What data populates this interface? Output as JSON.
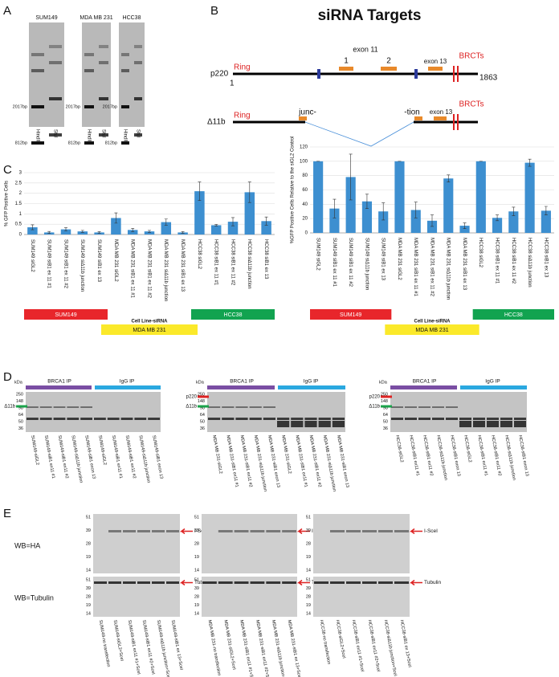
{
  "panel_labels": [
    "A",
    "B",
    "C",
    "D",
    "E"
  ],
  "panel_a": {
    "gels": [
      {
        "title": "SUM149",
        "markers": [
          "2017bp",
          "812bp"
        ],
        "lanes": [
          "HindIII",
          "StuI"
        ]
      },
      {
        "title": "MDA MB 231",
        "markers": [
          "2017bp",
          "812bp"
        ],
        "lanes": [
          "HindIII",
          "StuI"
        ]
      },
      {
        "title": "HCC38",
        "markers": [
          "2017bp",
          "812bp"
        ],
        "lanes": [
          "HindIII",
          "StuI"
        ]
      }
    ]
  },
  "panel_b": {
    "title": "siRNA Targets",
    "p220": {
      "label": "p220",
      "ring": "Ring",
      "exon11": "exon 11",
      "target1": "1",
      "target2": "2",
      "exon13": "exon 13",
      "brct": "BRCTs",
      "start": "1",
      "end": "1863"
    },
    "d11b": {
      "label": "Δ11b",
      "ring": "Ring",
      "junc": "junc-",
      "tion": "-tion",
      "exon13": "exon 13",
      "brct": "BRCTs"
    }
  },
  "panel_c": {
    "charts": [
      {
        "type": "bar",
        "ylabel": "% GFP Positive Cells",
        "color": "#3d8fd0",
        "grid": true,
        "categories": [
          "SUM149 siGL2",
          "SUM149 siB1 ex 11 #1",
          "SUM149 siB1 ex 11 #2",
          "SUM149 siΔ11b junction",
          "SUM149 siB1 ex 13",
          "MDA MB 231 siGL2",
          "MDA MB 231 siB1 ex 11 #1",
          "MDA MB 231 siB1 ex 11 #2",
          "MDA MB 231 siΔ11b junction",
          "MDA MB 231 siB1 ex 13",
          "HCC38 siGL2",
          "HCC38 siB1 ex 11 #1",
          "HCC38 siB1 ex 11 #2",
          "HCC38 siΔ11b junction",
          "HCC38 siB1 ex 13"
        ],
        "values": [
          0.35,
          0.1,
          0.25,
          0.15,
          0.1,
          0.8,
          0.22,
          0.15,
          0.6,
          0.1,
          2.1,
          0.45,
          0.62,
          2.05,
          0.65
        ],
        "errors": [
          0.12,
          0.05,
          0.08,
          0.05,
          0.04,
          0.25,
          0.08,
          0.05,
          0.15,
          0.04,
          0.45,
          0.04,
          0.2,
          0.5,
          0.2
        ],
        "ylim": [
          0,
          3
        ],
        "yticks": [
          0,
          0.5,
          1,
          1.5,
          2,
          2.5,
          3
        ],
        "xlabel": "Cell Line-siRNA",
        "groups": [
          {
            "name": "SUM149",
            "color": "#e8262b"
          },
          {
            "name": "MDA MB 231",
            "color": "#fbe92a"
          },
          {
            "name": "HCC38",
            "color": "#12a350"
          }
        ]
      },
      {
        "type": "bar",
        "ylabel": "%GFP Positive Cells Relative to the siGL2 Control",
        "color": "#3d8fd0",
        "grid": true,
        "categories": [
          "SUM149 siGL2",
          "SUM149 siB1 ex 11 #1",
          "SUM149 siB1 ex 11 #2",
          "SUM149 siΔ11b junction",
          "SUM149 siB1 ex 13",
          "MDA MB 231 siGL2",
          "MDA MB 231 siB1 ex 11 #1",
          "MDA MB 231 siB1 ex 11 #2",
          "MDA MB 231 siΔ11b junction",
          "MDA MB 231 siB1 ex 13",
          "HCC38 siGL2",
          "HCC38 siB1 ex 11 #1",
          "HCC38 siB1 ex 11 #2",
          "HCC38 siΔ11b junction",
          "HCC38 siB1 ex 13"
        ],
        "values": [
          100,
          34,
          78,
          44,
          30,
          100,
          32,
          17,
          76,
          10,
          100,
          21,
          30,
          98,
          31
        ],
        "errors": [
          0,
          13,
          32,
          10,
          12,
          0,
          11,
          8,
          5,
          4,
          0,
          4,
          6,
          5,
          6
        ],
        "ylim": [
          0,
          120
        ],
        "yticks": [
          0,
          20,
          40,
          60,
          80,
          100,
          120
        ],
        "xlabel": "Cell Line-siRNA",
        "groups": [
          {
            "name": "SUM149",
            "color": "#e8262b"
          },
          {
            "name": "MDA MB 231",
            "color": "#fbe92a"
          },
          {
            "name": "HCC38",
            "color": "#12a350"
          }
        ]
      }
    ]
  },
  "panel_d": {
    "blots": [
      {
        "unit": "kDa",
        "markers": [
          "250",
          "148",
          "98",
          "64",
          "50",
          "36"
        ],
        "ip_labels": [
          "BRCA1 IP",
          "IgG IP"
        ],
        "bands": [
          "Δ11b"
        ],
        "lanes": [
          "SUM149-siGL2",
          "SUM149-siB1 ex11 #1",
          "SUM149-siB1 ex11 #2",
          "SUM149-siΔ11b junction",
          "SUM149-siB1 exon 13",
          "SUM149-siGL2",
          "SUM149-siB1 ex11 #1",
          "SUM149-siB1 ex11 #2",
          "SUM149-siΔ11b junction",
          "SUM149-siB1 exon 13"
        ]
      },
      {
        "unit": "kDa",
        "markers": [
          "250",
          "148",
          "98",
          "64",
          "50",
          "36"
        ],
        "ip_labels": [
          "BRCA1 IP",
          "IgG IP"
        ],
        "bands": [
          "p220",
          "Δ11b"
        ],
        "lanes": [
          "MDA MB 231-siGL2",
          "MDA MB 231-siB1 ex11 #1",
          "MDA MB 231-siB1 ex11 #2",
          "MDA MB 231-siΔ11b junction",
          "MDA MB 231-siB1 exon 13",
          "MDA MB 231-siGL2",
          "MDA MB 231-siB1 ex11 #1",
          "MDA MB 231-siB1 ex11 #2",
          "MDA MB 231-siΔ11b junction",
          "MDA MB 231-siB1 exon 13"
        ]
      },
      {
        "unit": "kDa",
        "markers": [
          "250",
          "148",
          "98",
          "64",
          "50",
          "36"
        ],
        "ip_labels": [
          "BRCA1 IP",
          "IgG IP"
        ],
        "bands": [
          "p220",
          "Δ11b"
        ],
        "lanes": [
          "HCC38-siGL2",
          "HCC38-siB1 ex11 #1",
          "HCC38-siB1 ex11 #2",
          "HCC38-siΔ11b junction",
          "HCC38-siB1 exon 13",
          "HCC38-siGL2",
          "HCC38-siB1 ex11 #1",
          "HCC38-siB1 ex11 #2",
          "HCC38-siΔ11b junction",
          "HCC38-siB1 exon 13"
        ]
      }
    ]
  },
  "panel_e": {
    "rows": [
      "WB=HA",
      "WB=Tubulin"
    ],
    "blots": [
      {
        "top_markers": [
          "51",
          "39",
          "28",
          "19",
          "14"
        ],
        "bottom_markers": [
          "51",
          "39",
          "28",
          "19",
          "14"
        ],
        "top_band": "I-SceI",
        "bottom_band": "Tubulin",
        "lanes": [
          "SUM149-no transfection",
          "SUM149-siGL2+SceI",
          "SUM149-siB1 ex11 #1+SceI",
          "SUM149-siB1 ex11 #2+SceI",
          "SUM149-siΔ11b junction+SceI",
          "SUM149-siB1 ex 13+SceI"
        ]
      },
      {
        "top_markers": [
          "51",
          "39",
          "28",
          "19",
          "14"
        ],
        "bottom_markers": [
          "51",
          "39",
          "28",
          "19",
          "14"
        ],
        "top_band": "I-SceI",
        "bottom_band": "Tubulin",
        "lanes": [
          "MDA MB 231-no transfection",
          "MDA MB 231-siGL2+SceI",
          "MDA MB 231-siB1 ex11 #1+SceI",
          "MDA MB 231-siB1 ex11 #2+SceI",
          "MDA MB 231-siΔ11b junction+SceI",
          "MDA MB 231-siB1 ex 13+SceI"
        ]
      },
      {
        "top_markers": [
          "51",
          "39",
          "28",
          "19",
          "14"
        ],
        "bottom_markers": [
          "51",
          "39",
          "28",
          "19",
          "14"
        ],
        "top_band": "I-SceI",
        "bottom_band": "Tubulin",
        "lanes": [
          "HCC38-no transfection",
          "HCC38-siGL2+SceI",
          "HCC38-siB1 ex11 #1+SceI",
          "HCC38-siB1 ex11 #2+SceI",
          "HCC38-siΔ11b junction+SceI",
          "HCC38-siB1 ex 13+SceI"
        ]
      }
    ]
  }
}
